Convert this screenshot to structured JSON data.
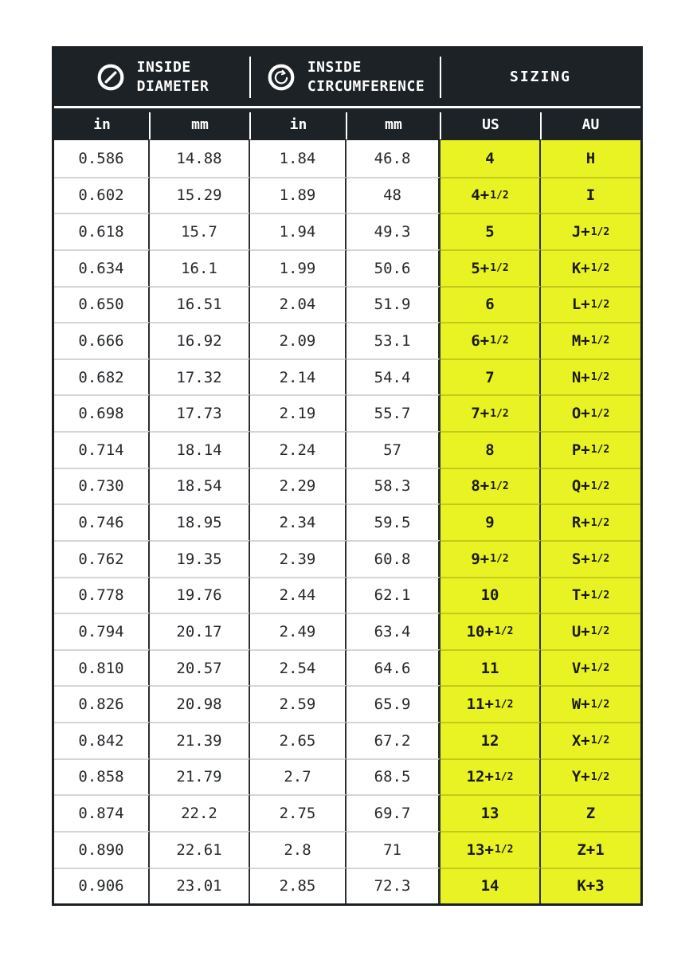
{
  "colors": {
    "highlight_yellow": "#e9f222",
    "header_bg": "#1c2226",
    "frame_dark": "#1b2024",
    "body_text": "#26292c",
    "header_text": "#ffffff"
  },
  "table": {
    "header": {
      "groups": [
        {
          "line1": "INSIDE",
          "line2": "DIAMETER",
          "icon": "inside-diameter-icon"
        },
        {
          "line1": "INSIDE",
          "line2": "CIRCUMFERENCE",
          "icon": "inside-circumference-icon"
        },
        {
          "line1": "SIZING",
          "line2": "",
          "icon": ""
        }
      ],
      "units": [
        "in",
        "mm",
        "in",
        "mm",
        "US",
        "AU"
      ]
    }
  },
  "chart_data": {
    "type": "table",
    "column_groups": [
      "INSIDE DIAMETER",
      "INSIDE CIRCUMFERENCE",
      "SIZING"
    ],
    "columns": [
      "in",
      "mm",
      "in",
      "mm",
      "US",
      "AU"
    ],
    "rows": [
      [
        "0.586",
        "14.88",
        "1.84",
        "46.8",
        "4",
        "H"
      ],
      [
        "0.602",
        "15.29",
        "1.89",
        "48",
        "4+1/2",
        "I"
      ],
      [
        "0.618",
        "15.7",
        "1.94",
        "49.3",
        "5",
        "J+1/2"
      ],
      [
        "0.634",
        "16.1",
        "1.99",
        "50.6",
        "5+1/2",
        "K+1/2"
      ],
      [
        "0.650",
        "16.51",
        "2.04",
        "51.9",
        "6",
        "L+1/2"
      ],
      [
        "0.666",
        "16.92",
        "2.09",
        "53.1",
        "6+1/2",
        "M+1/2"
      ],
      [
        "0.682",
        "17.32",
        "2.14",
        "54.4",
        "7",
        "N+1/2"
      ],
      [
        "0.698",
        "17.73",
        "2.19",
        "55.7",
        "7+1/2",
        "O+1/2"
      ],
      [
        "0.714",
        "18.14",
        "2.24",
        "57",
        "8",
        "P+1/2"
      ],
      [
        "0.730",
        "18.54",
        "2.29",
        "58.3",
        "8+1/2",
        "Q+1/2"
      ],
      [
        "0.746",
        "18.95",
        "2.34",
        "59.5",
        "9",
        "R+1/2"
      ],
      [
        "0.762",
        "19.35",
        "2.39",
        "60.8",
        "9+1/2",
        "S+1/2"
      ],
      [
        "0.778",
        "19.76",
        "2.44",
        "62.1",
        "10",
        "T+1/2"
      ],
      [
        "0.794",
        "20.17",
        "2.49",
        "63.4",
        "10+1/2",
        "U+1/2"
      ],
      [
        "0.810",
        "20.57",
        "2.54",
        "64.6",
        "11",
        "V+1/2"
      ],
      [
        "0.826",
        "20.98",
        "2.59",
        "65.9",
        "11+1/2",
        "W+1/2"
      ],
      [
        "0.842",
        "21.39",
        "2.65",
        "67.2",
        "12",
        "X+1/2"
      ],
      [
        "0.858",
        "21.79",
        "2.7",
        "68.5",
        "12+1/2",
        "Y+1/2"
      ],
      [
        "0.874",
        "22.2",
        "2.75",
        "69.7",
        "13",
        "Z"
      ],
      [
        "0.890",
        "22.61",
        "2.8",
        "71",
        "13+1/2",
        "Z+1"
      ],
      [
        "0.906",
        "23.01",
        "2.85",
        "72.3",
        "14",
        "K+3"
      ]
    ]
  }
}
